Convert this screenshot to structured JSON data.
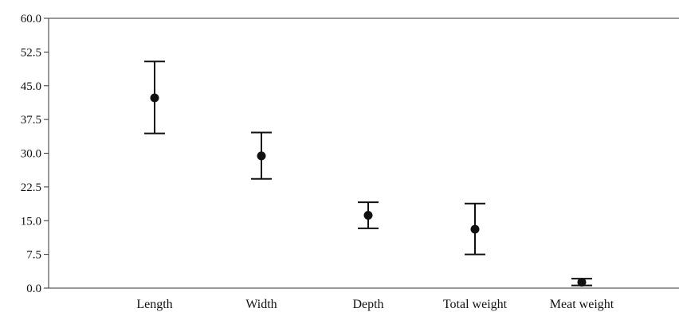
{
  "chart_data": {
    "type": "scatter",
    "title": "",
    "xlabel": "",
    "ylabel": "",
    "categories": [
      "Length",
      "Width",
      "Depth",
      "Total weight",
      "Meat weight"
    ],
    "mean": [
      42.3,
      29.4,
      16.2,
      13.1,
      1.3
    ],
    "error_low": [
      34.4,
      24.3,
      13.3,
      7.5,
      0.6
    ],
    "error_high": [
      50.4,
      34.6,
      19.1,
      18.8,
      2.1
    ],
    "ylim": [
      0.0,
      60.0
    ],
    "yticks": [
      "0.0",
      "7.5",
      "15.0",
      "22.5",
      "30.0",
      "37.5",
      "45.0",
      "52.5",
      "60.0"
    ],
    "grid": false,
    "colors": {
      "marker": "#111111",
      "axis": "#333333"
    }
  }
}
